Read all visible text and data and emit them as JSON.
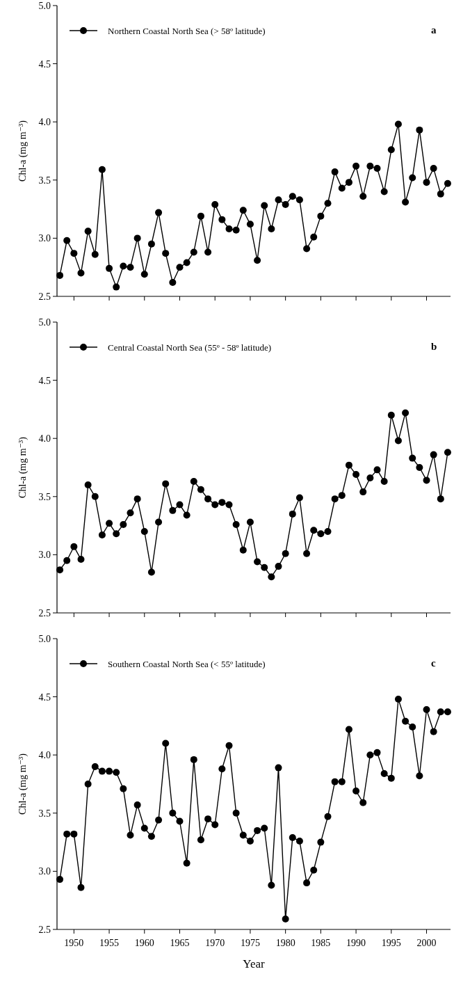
{
  "chart_data": [
    {
      "type": "line",
      "x": [
        1948,
        1949,
        1950,
        1951,
        1952,
        1953,
        1954,
        1955,
        1956,
        1957,
        1958,
        1959,
        1960,
        1961,
        1962,
        1963,
        1964,
        1965,
        1966,
        1967,
        1968,
        1969,
        1970,
        1971,
        1972,
        1973,
        1974,
        1975,
        1976,
        1977,
        1978,
        1979,
        1980,
        1981,
        1982,
        1983,
        1984,
        1985,
        1986,
        1987,
        1988,
        1989,
        1990,
        1991,
        1992,
        1993,
        1994,
        1995,
        1996,
        1997,
        1998,
        1999,
        2000,
        2001,
        2002,
        2003
      ],
      "series": [
        {
          "name": "Northern Coastal North Sea (> 58º latitude)",
          "color": "#000000",
          "values": [
            2.68,
            2.98,
            2.87,
            2.7,
            3.06,
            2.86,
            3.59,
            2.74,
            2.58,
            2.76,
            2.75,
            3.0,
            2.69,
            2.95,
            3.22,
            2.87,
            2.62,
            2.75,
            2.79,
            2.88,
            3.19,
            2.88,
            3.29,
            3.16,
            3.08,
            3.07,
            3.24,
            3.12,
            2.81,
            3.28,
            3.08,
            3.33,
            3.29,
            3.36,
            3.33,
            2.91,
            3.01,
            3.19,
            3.3,
            3.57,
            3.43,
            3.48,
            3.62,
            3.36,
            3.62,
            3.6,
            3.4,
            3.76,
            3.98,
            3.31,
            3.52,
            3.93,
            3.48,
            3.6,
            3.38,
            3.47
          ]
        }
      ],
      "xlim": [
        1947.6,
        2003.4
      ],
      "xticks": [
        1950,
        1955,
        1960,
        1965,
        1970,
        1975,
        1980,
        1985,
        1990,
        1995,
        2000
      ],
      "ylim": [
        2.5,
        5.0
      ],
      "yticks": [
        {
          "value": 2.5,
          "label": "2.5"
        },
        {
          "value": 3,
          "label": "3.0"
        },
        {
          "value": 3.5,
          "label": "3.5"
        },
        {
          "value": 4,
          "label": "4.0"
        },
        {
          "value": 4.5,
          "label": "4.5"
        },
        {
          "value": 5,
          "label": "5.0"
        }
      ],
      "ylabel": "Chl-a (mg m⁻³)",
      "annotations": [
        "a"
      ],
      "legend": "top left",
      "marker": "circle",
      "tick_labels": "y"
    },
    {
      "type": "line",
      "x": [
        1948,
        1949,
        1950,
        1951,
        1952,
        1953,
        1954,
        1955,
        1956,
        1957,
        1958,
        1959,
        1960,
        1961,
        1962,
        1963,
        1964,
        1965,
        1966,
        1967,
        1968,
        1969,
        1970,
        1971,
        1972,
        1973,
        1974,
        1975,
        1976,
        1977,
        1978,
        1979,
        1980,
        1981,
        1982,
        1983,
        1984,
        1985,
        1986,
        1987,
        1988,
        1989,
        1990,
        1991,
        1992,
        1993,
        1994,
        1995,
        1996,
        1997,
        1998,
        1999,
        2000,
        2001,
        2002,
        2003
      ],
      "series": [
        {
          "name": "Central Coastal North Sea (55º - 58º latitude)",
          "color": "#000000",
          "values": [
            2.87,
            2.95,
            3.07,
            2.96,
            3.6,
            3.5,
            3.17,
            3.27,
            3.18,
            3.26,
            3.36,
            3.48,
            3.2,
            2.85,
            3.28,
            3.61,
            3.38,
            3.43,
            3.34,
            3.63,
            3.56,
            3.48,
            3.43,
            3.45,
            3.43,
            3.26,
            3.04,
            3.28,
            2.94,
            2.89,
            2.81,
            2.9,
            3.01,
            3.35,
            3.49,
            3.01,
            3.21,
            3.18,
            3.2,
            3.48,
            3.51,
            3.77,
            3.69,
            3.54,
            3.66,
            3.73,
            3.63,
            4.2,
            3.98,
            4.22,
            3.83,
            3.75,
            3.64,
            3.86,
            3.48,
            3.88
          ]
        }
      ],
      "xlim": [
        1947.6,
        2003.4
      ],
      "xticks": [
        1950,
        1955,
        1960,
        1965,
        1970,
        1975,
        1980,
        1985,
        1990,
        1995,
        2000
      ],
      "ylim": [
        2.5,
        5.0
      ],
      "yticks": [
        {
          "value": 2.5,
          "label": "2.5"
        },
        {
          "value": 3,
          "label": "3.0"
        },
        {
          "value": 3.5,
          "label": "3.5"
        },
        {
          "value": 4,
          "label": "4.0"
        },
        {
          "value": 4.5,
          "label": "4.5"
        },
        {
          "value": 5,
          "label": "5.0"
        }
      ],
      "ylabel": "Chl-a (mg m⁻³)",
      "annotations": [
        "b"
      ],
      "legend": "top left",
      "marker": "circle",
      "tick_labels": "y"
    },
    {
      "type": "line",
      "x": [
        1948,
        1949,
        1950,
        1951,
        1952,
        1953,
        1954,
        1955,
        1956,
        1957,
        1958,
        1959,
        1960,
        1961,
        1962,
        1963,
        1964,
        1965,
        1966,
        1967,
        1968,
        1969,
        1970,
        1971,
        1972,
        1973,
        1974,
        1975,
        1976,
        1977,
        1978,
        1979,
        1980,
        1981,
        1982,
        1983,
        1984,
        1985,
        1986,
        1987,
        1988,
        1989,
        1990,
        1991,
        1992,
        1993,
        1994,
        1995,
        1996,
        1997,
        1998,
        1999,
        2000,
        2001,
        2002,
        2003
      ],
      "series": [
        {
          "name": "Southern Coastal North Sea (< 55º latitude)",
          "color": "#000000",
          "values": [
            2.93,
            3.32,
            3.32,
            2.86,
            3.75,
            3.9,
            3.86,
            3.86,
            3.85,
            3.71,
            3.31,
            3.57,
            3.37,
            3.3,
            3.44,
            4.1,
            3.5,
            3.43,
            3.07,
            3.96,
            3.27,
            3.45,
            3.4,
            3.88,
            4.08,
            3.5,
            3.31,
            3.26,
            3.35,
            3.37,
            2.88,
            3.89,
            2.59,
            3.29,
            3.26,
            2.9,
            3.01,
            3.25,
            3.47,
            3.77,
            3.77,
            4.22,
            3.69,
            3.59,
            4.0,
            4.02,
            3.84,
            3.8,
            4.48,
            4.29,
            4.24,
            3.82,
            4.39,
            4.2,
            4.37,
            4.37
          ]
        }
      ],
      "xlim": [
        1947.6,
        2003.4
      ],
      "xticks": [
        1950,
        1955,
        1960,
        1965,
        1970,
        1975,
        1980,
        1985,
        1990,
        1995,
        2000
      ],
      "ylim": [
        2.5,
        5.0
      ],
      "yticks": [
        {
          "value": 2.5,
          "label": "2.5"
        },
        {
          "value": 3,
          "label": "3.0"
        },
        {
          "value": 3.5,
          "label": "3.5"
        },
        {
          "value": 4,
          "label": "4.0"
        },
        {
          "value": 4.5,
          "label": "4.5"
        },
        {
          "value": 5,
          "label": "5.0"
        }
      ],
      "xlabel": "Year",
      "ylabel": "Chl-a (mg m⁻³)",
      "annotations": [
        "c"
      ],
      "legend": "top left",
      "marker": "circle"
    }
  ]
}
